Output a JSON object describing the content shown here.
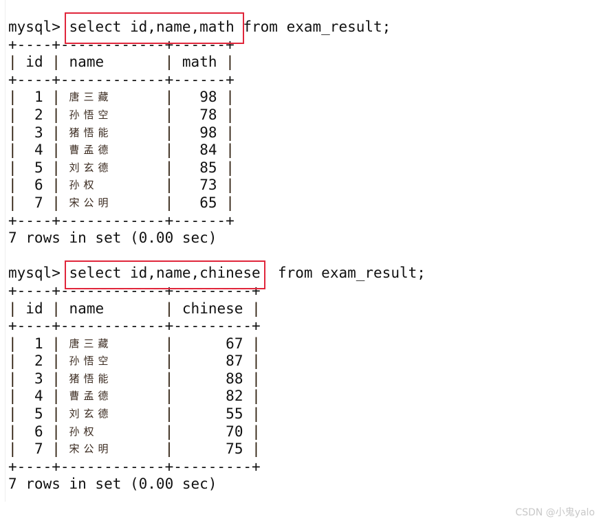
{
  "prompt": "mysql> ",
  "queries": [
    {
      "command_highlighted": "select id,name,math",
      "command_rest": " from exam_result;",
      "separator": "+----+------------+------+",
      "headers": [
        "id",
        "name",
        "math"
      ],
      "col_widths": [
        2,
        10,
        4
      ],
      "rows": [
        [
          "1",
          "唐三藏",
          "98"
        ],
        [
          "2",
          "孙悟空",
          "78"
        ],
        [
          "3",
          "猪悟能",
          "98"
        ],
        [
          "4",
          "曹孟德",
          "84"
        ],
        [
          "5",
          "刘玄德",
          "85"
        ],
        [
          "6",
          "孙权",
          "73"
        ],
        [
          "7",
          "宋公明",
          "65"
        ]
      ],
      "footer": "7 rows in set (0.00 sec)"
    },
    {
      "command_highlighted": "select id,name,chinese",
      "command_rest": "  from exam_result;",
      "separator": "+----+------------+---------+",
      "headers": [
        "id",
        "name",
        "chinese"
      ],
      "col_widths": [
        2,
        10,
        7
      ],
      "rows": [
        [
          "1",
          "唐三藏",
          "67"
        ],
        [
          "2",
          "孙悟空",
          "87"
        ],
        [
          "3",
          "猪悟能",
          "88"
        ],
        [
          "4",
          "曹孟德",
          "82"
        ],
        [
          "5",
          "刘玄德",
          "55"
        ],
        [
          "6",
          "孙权",
          "70"
        ],
        [
          "7",
          "宋公明",
          "75"
        ]
      ],
      "footer": "7 rows in set (0.00 sec)"
    }
  ],
  "highlight_color": "#e0253a",
  "watermark": "CSDN @小鬼yalo"
}
